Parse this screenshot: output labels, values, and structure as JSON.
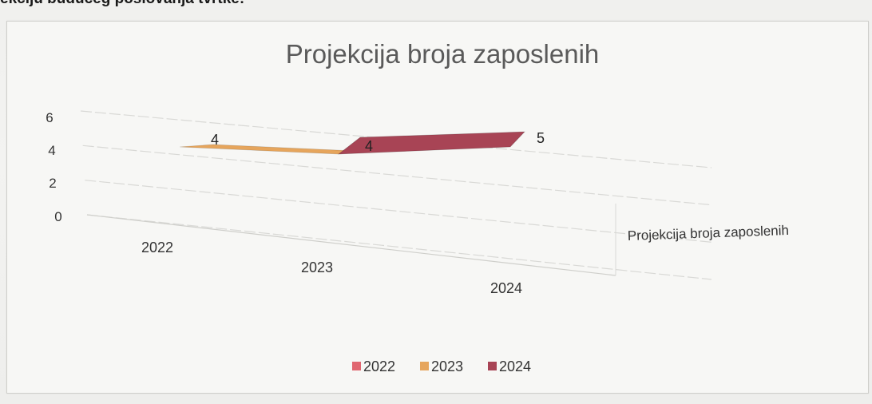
{
  "document": {
    "heading": "ekciju budućeg poslovanja tvrtke:"
  },
  "chart_data": {
    "type": "area",
    "title": "Projekcija broja zaposlenih",
    "categories": [
      "2022",
      "2023",
      "2024"
    ],
    "y_ticks": [
      "0",
      "2",
      "4",
      "6"
    ],
    "ylim": [
      0,
      6
    ],
    "grid": true,
    "series": [
      {
        "name": "2022",
        "color": "#e06670",
        "values": [
          0,
          0,
          0
        ]
      },
      {
        "name": "2023",
        "color": "#e6a55c",
        "values": [
          4,
          4,
          null
        ]
      },
      {
        "name": "2024",
        "color": "#a84455",
        "values": [
          null,
          4,
          5
        ]
      }
    ],
    "data_labels": [
      "4",
      "4",
      "5"
    ],
    "depth_axis_label": "Projekcija broja zaposlenih",
    "legend_position": "bottom"
  }
}
